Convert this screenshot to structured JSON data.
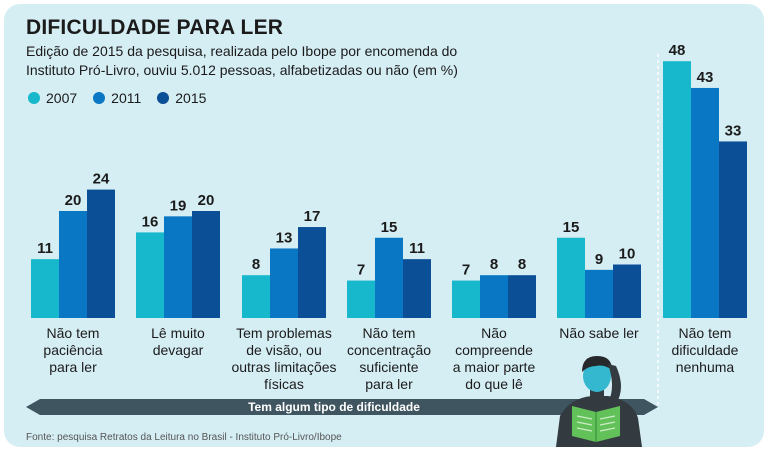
{
  "title": "DIFICULDADE PARA LER",
  "subtitle": "Edição de 2015 da pesquisa, realizada pelo Ibope por encomenda do Instituto Pró-Livro, ouviu 5.012 pessoas, alfabetizadas ou não (em %)",
  "source": "Fonte: pesquisa Retratos da Leitura no Brasil - Instituto Pró-Livro/Ibope",
  "band_label": "Tem algum tipo de dificuldade",
  "colors": {
    "2007": "#17b8cc",
    "2011": "#0a77c4",
    "2015": "#0b4f96",
    "background": "#d5eef4"
  },
  "chart_data": {
    "type": "bar",
    "title": "DIFICULDADE PARA LER",
    "ylabel": "%",
    "ylim": [
      0,
      50
    ],
    "legend_position": "top-left",
    "categories": [
      "Não tem paciência para ler",
      "Lê muito devagar",
      "Tem problemas de visão, ou outras limitações físicas",
      "Não tem concentração suficiente para ler",
      "Não compreende a maior parte do que lê",
      "Não sabe ler",
      "Não tem dificuldade nenhuma"
    ],
    "category_lines": [
      [
        "Não tem",
        "paciência",
        "para ler"
      ],
      [
        "Lê muito",
        "devagar"
      ],
      [
        "Tem problemas",
        "de visão, ou",
        "outras limitações",
        "físicas"
      ],
      [
        "Não tem",
        "concentração",
        "suficiente",
        "para ler"
      ],
      [
        "Não",
        "compreende",
        "a maior parte",
        "do que lê"
      ],
      [
        "Não sabe ler"
      ],
      [
        "Não tem",
        "dificuldade",
        "nenhuma"
      ]
    ],
    "series": [
      {
        "name": "2007",
        "values": [
          11,
          16,
          8,
          7,
          7,
          15,
          48
        ]
      },
      {
        "name": "2011",
        "values": [
          20,
          19,
          13,
          15,
          8,
          9,
          43
        ]
      },
      {
        "name": "2015",
        "values": [
          24,
          20,
          17,
          11,
          8,
          10,
          33
        ]
      }
    ]
  }
}
